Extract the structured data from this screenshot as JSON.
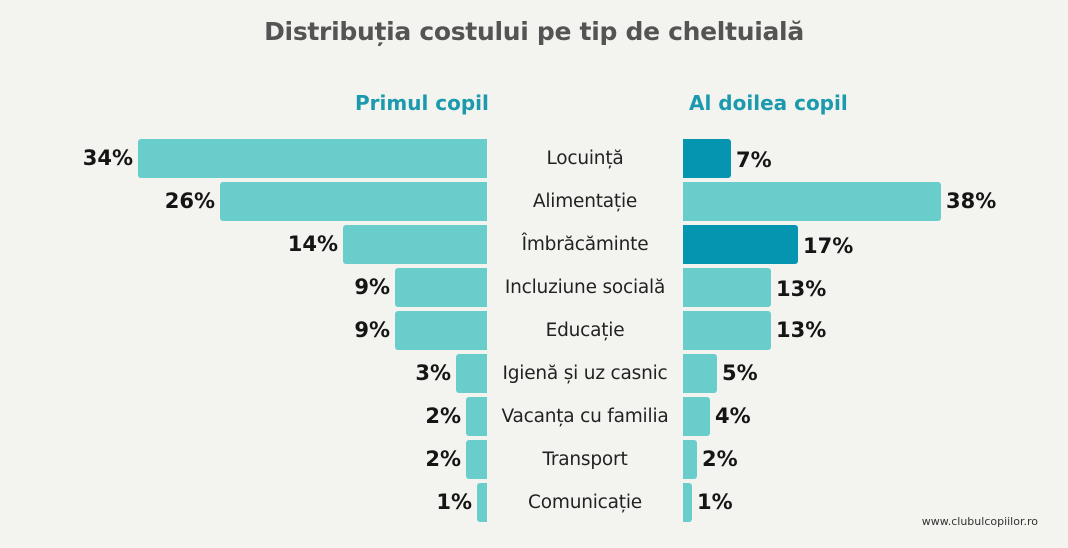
{
  "title": "Distribuția costului pe tip de cheltuială",
  "left_header": "Primul copil",
  "right_header": "Al doilea copil",
  "footer": "www.clubulcopiilor.ro",
  "colors": {
    "background": "#f3f3ef",
    "bar_light": "#68cdcb",
    "bar_dark": "#0595b0",
    "header": "#1b9aad",
    "title": "#545454"
  },
  "rows": [
    {
      "category": "Locuință",
      "first": "34%",
      "second": "7%"
    },
    {
      "category": "Alimentație",
      "first": "26%",
      "second": "38%"
    },
    {
      "category": "Îmbrăcăminte",
      "first": "14%",
      "second": "17%"
    },
    {
      "category": "Incluziune socială",
      "first": "9%",
      "second": "13%"
    },
    {
      "category": "Educație",
      "first": "9%",
      "second": "13%"
    },
    {
      "category": "Igienă și uz casnic",
      "first": "3%",
      "second": "5%"
    },
    {
      "category": "Vacanța cu familia",
      "first": "2%",
      "second": "4%"
    },
    {
      "category": "Transport",
      "first": "2%",
      "second": "2%"
    },
    {
      "category": "Comunicație",
      "first": "1%",
      "second": "1%"
    }
  ],
  "chart_data": {
    "type": "bar",
    "orientation": "horizontal-butterfly",
    "title": "Distribuția costului pe tip de cheltuială",
    "categories": [
      "Locuință",
      "Alimentație",
      "Îmbrăcăminte",
      "Incluziune socială",
      "Educație",
      "Igienă și uz casnic",
      "Vacanța cu familia",
      "Transport",
      "Comunicație"
    ],
    "series": [
      {
        "name": "Primul copil",
        "values": [
          34,
          26,
          14,
          9,
          9,
          3,
          2,
          2,
          1
        ],
        "side": "left",
        "color": "#68cdcb"
      },
      {
        "name": "Al doilea copil",
        "values": [
          7,
          38,
          17,
          13,
          13,
          5,
          4,
          2,
          1
        ],
        "side": "right",
        "color": "#68cdcb",
        "highlighted_indices": [
          0,
          2
        ],
        "highlight_color": "#0595b0"
      }
    ],
    "unit": "%",
    "grid": false,
    "data_labels": true,
    "xlabel": "",
    "ylabel": ""
  }
}
